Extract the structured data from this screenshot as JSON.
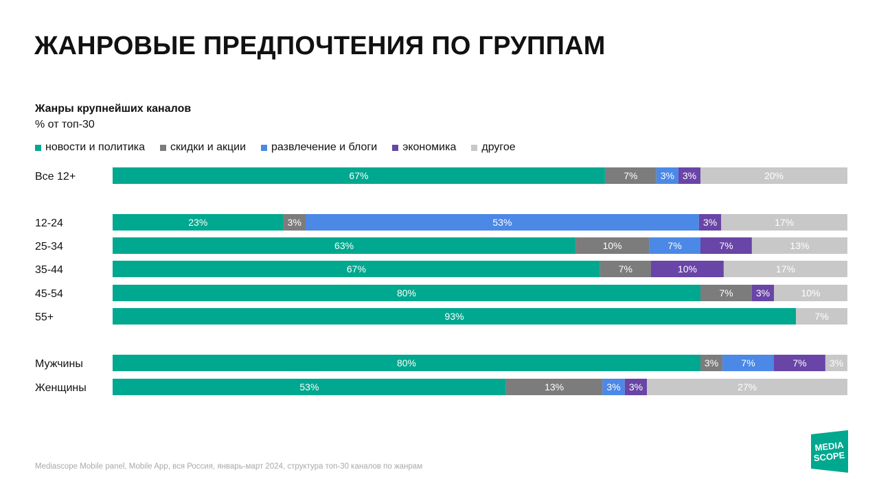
{
  "header": {
    "title": "ЖАНРОВЫЕ ПРЕДПОЧТЕНИЯ ПО ГРУППАМ",
    "subtitle": "Жанры крупнейших каналов",
    "units": "% от топ-30"
  },
  "footer": {
    "source": "Mediascope Mobile panel, Mobile App, вся Россия, январь-март 2024, структура топ-30 каналов по жанрам"
  },
  "logo": {
    "line1": "MEDIA",
    "line2": "SCOPE",
    "color": "#00a88f"
  },
  "chart_data": {
    "type": "bar",
    "orientation": "horizontal",
    "stacked": true,
    "title": "Жанры крупнейших каналов",
    "units": "% от топ-30",
    "legend_position": "top-left",
    "grid": false,
    "categories": [
      "Все 12+",
      "12-24",
      "25-34",
      "35-44",
      "45-54",
      "55+",
      "Мужчины",
      "Женщины"
    ],
    "series": [
      {
        "name": "новости и политика",
        "color": "#00a88f",
        "values": [
          67,
          23,
          63,
          67,
          80,
          93,
          80,
          53
        ]
      },
      {
        "name": "скидки и акции",
        "color": "#7c7c7c",
        "values": [
          7,
          3,
          10,
          7,
          7,
          0,
          3,
          13
        ]
      },
      {
        "name": "развлечение и блоги",
        "color": "#4c88e6",
        "values": [
          3,
          53,
          7,
          0,
          0,
          0,
          7,
          3
        ]
      },
      {
        "name": "экономика",
        "color": "#6845a6",
        "values": [
          3,
          3,
          7,
          10,
          3,
          0,
          7,
          3
        ]
      },
      {
        "name": "другое",
        "color": "#c8c8c8",
        "values": [
          20,
          17,
          13,
          17,
          10,
          7,
          3,
          27
        ]
      }
    ]
  }
}
